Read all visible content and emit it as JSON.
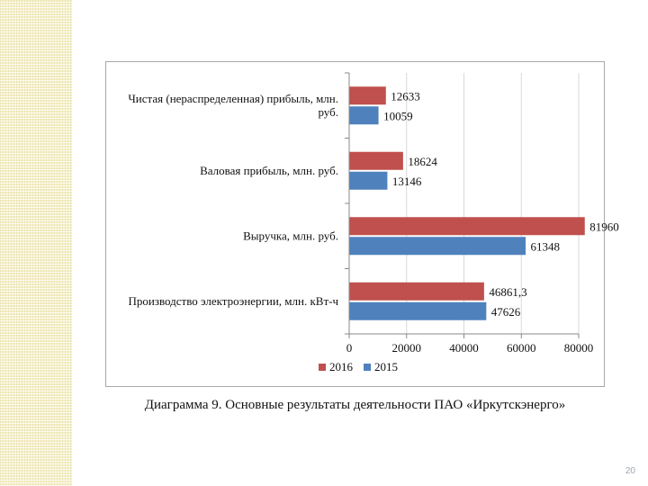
{
  "chart_data": {
    "type": "bar",
    "orientation": "horizontal",
    "categories": [
      "Чистая (нераспределенная) прибыль, млн. руб.",
      "Валовая прибыль, млн. руб.",
      "Выручка, млн. руб.",
      "Производство электроэнергии, млн. кВт-ч"
    ],
    "series": [
      {
        "name": "2016",
        "values": [
          12633,
          18624,
          81960,
          46861.3
        ],
        "labels": [
          "12633",
          "18624",
          "81960",
          "46861,3"
        ],
        "color": "#c0504d"
      },
      {
        "name": "2015",
        "values": [
          10059,
          13146,
          61348,
          47626
        ],
        "labels": [
          "10059",
          "13146",
          "61348",
          "47626"
        ],
        "color": "#4f81bd"
      }
    ],
    "xlim": [
      0,
      80000
    ],
    "xticks": [
      "0",
      "20000",
      "40000",
      "60000",
      "80000"
    ],
    "grid": true,
    "legend": "bottom"
  },
  "caption": "Диаграмма 9. Основные результаты деятельности ПАО «Иркутскэнерго»",
  "slide_number": "20"
}
